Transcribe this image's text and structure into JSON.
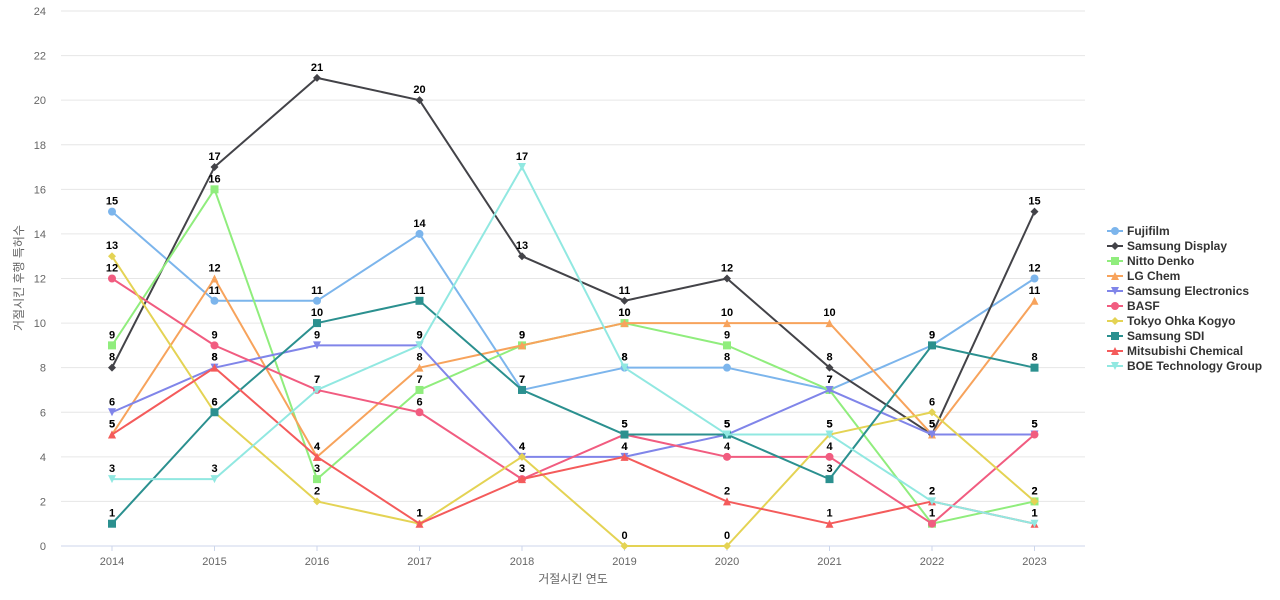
{
  "chart_data": {
    "type": "line",
    "title": "",
    "xlabel": "거절시킨 연도",
    "ylabel": "거절시킨 후행 특허수",
    "x": [
      "2014",
      "2015",
      "2016",
      "2017",
      "2018",
      "2019",
      "2020",
      "2021",
      "2022",
      "2023"
    ],
    "ylim": [
      0,
      24
    ],
    "yticks": [
      0,
      2,
      4,
      6,
      8,
      10,
      12,
      14,
      16,
      18,
      20,
      22,
      24
    ],
    "grid": true,
    "legend_position": "right",
    "series": [
      {
        "name": "Fujifilm",
        "color": "#7cb5ec",
        "marker": "circle",
        "values": [
          15,
          11,
          11,
          14,
          7,
          8,
          8,
          7,
          9,
          12
        ]
      },
      {
        "name": "Samsung Display",
        "color": "#434348",
        "marker": "diamond",
        "values": [
          8,
          17,
          21,
          20,
          13,
          11,
          12,
          8,
          5,
          15
        ]
      },
      {
        "name": "Nitto Denko",
        "color": "#90ed7d",
        "marker": "square",
        "values": [
          9,
          16,
          3,
          7,
          9,
          10,
          9,
          7,
          1,
          2
        ]
      },
      {
        "name": "LG Chem",
        "color": "#f7a35c",
        "marker": "triangle",
        "values": [
          5,
          12,
          4,
          8,
          9,
          10,
          10,
          10,
          5,
          11
        ]
      },
      {
        "name": "Samsung Electronics",
        "color": "#8085e9",
        "marker": "triangle-down",
        "values": [
          6,
          8,
          9,
          9,
          4,
          4,
          5,
          7,
          5,
          5
        ]
      },
      {
        "name": "BASF",
        "color": "#f15c80",
        "marker": "circle",
        "values": [
          12,
          9,
          7,
          6,
          3,
          5,
          4,
          4,
          1,
          5
        ]
      },
      {
        "name": "Tokyo Ohka Kogyo",
        "color": "#e4d354",
        "marker": "diamond",
        "values": [
          13,
          6,
          2,
          1,
          4,
          0,
          0,
          5,
          6,
          2
        ]
      },
      {
        "name": "Samsung SDI",
        "color": "#2b908f",
        "marker": "square",
        "values": [
          1,
          6,
          10,
          11,
          7,
          5,
          5,
          3,
          9,
          8
        ]
      },
      {
        "name": "Mitsubishi Chemical",
        "color": "#f45b5b",
        "marker": "triangle",
        "values": [
          5,
          8,
          4,
          1,
          3,
          4,
          2,
          1,
          2,
          1
        ]
      },
      {
        "name": "BOE Technology Group",
        "color": "#91e8e1",
        "marker": "triangle-down",
        "values": [
          3,
          3,
          7,
          9,
          17,
          8,
          5,
          5,
          2,
          1
        ]
      }
    ]
  }
}
